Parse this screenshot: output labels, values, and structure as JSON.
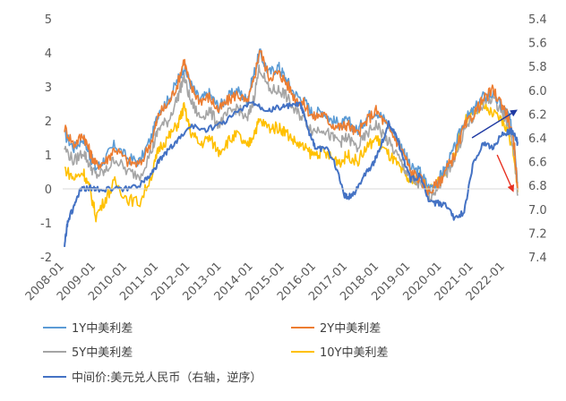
{
  "chart_data": {
    "type": "line",
    "title": "",
    "xlabel": "",
    "ylabel": "",
    "y_left": {
      "lim": [
        -2,
        5
      ],
      "ticks": [
        "-2",
        "-1",
        "0",
        "1",
        "2",
        "3",
        "4",
        "5"
      ]
    },
    "y_right": {
      "lim": [
        7.4,
        5.4
      ],
      "reversed": true,
      "ticks": [
        "5.4",
        "5.6",
        "5.8",
        "6.0",
        "6.2",
        "6.4",
        "6.6",
        "6.8",
        "7.0",
        "7.2",
        "7.4"
      ]
    },
    "x_range": [
      2008.0,
      2022.4
    ],
    "x_ticks": [
      "2008-01",
      "2009-01",
      "2010-01",
      "2011-01",
      "2012-01",
      "2013-01",
      "2014-01",
      "2015-01",
      "2016-01",
      "2017-01",
      "2018-01",
      "2019-01",
      "2020-01",
      "2021-01",
      "2022-01"
    ],
    "grid": false,
    "legend_position": "bottom",
    "series": [
      {
        "name": "1Y中美利差",
        "color": "#5b9bd5",
        "axis": "left",
        "x": [
          2008.0,
          2008.3,
          2008.6,
          2008.8,
          2009.0,
          2009.3,
          2009.6,
          2010.0,
          2010.4,
          2010.8,
          2011.0,
          2011.3,
          2011.6,
          2011.8,
          2012.0,
          2012.3,
          2012.6,
          2012.9,
          2013.2,
          2013.5,
          2013.8,
          2014.0,
          2014.2,
          2014.5,
          2014.8,
          2015.0,
          2015.3,
          2015.6,
          2015.9,
          2016.2,
          2016.5,
          2016.8,
          2017.0,
          2017.3,
          2017.6,
          2017.9,
          2018.2,
          2018.5,
          2018.8,
          2019.0,
          2019.3,
          2019.6,
          2019.9,
          2020.1,
          2020.4,
          2020.7,
          2021.0,
          2021.3,
          2021.6,
          2021.9,
          2022.1,
          2022.3,
          2022.4
        ],
        "y": [
          1.6,
          1.2,
          1.5,
          1.0,
          0.6,
          0.9,
          1.3,
          0.9,
          0.8,
          1.6,
          2.3,
          2.6,
          3.2,
          3.6,
          3.1,
          2.6,
          2.8,
          2.4,
          2.7,
          2.9,
          2.6,
          3.3,
          4.0,
          3.4,
          3.6,
          3.3,
          2.8,
          2.6,
          2.2,
          2.3,
          2.0,
          1.9,
          2.0,
          1.7,
          2.1,
          2.3,
          2.0,
          1.6,
          1.1,
          0.6,
          0.5,
          0.0,
          0.3,
          0.6,
          1.2,
          2.0,
          2.3,
          2.7,
          2.8,
          2.4,
          2.2,
          1.4,
          0.2
        ]
      },
      {
        "name": "2Y中美利差",
        "color": "#ed7d31",
        "axis": "left",
        "x": [
          2008.0,
          2008.3,
          2008.6,
          2008.8,
          2009.0,
          2009.3,
          2009.6,
          2010.0,
          2010.4,
          2010.8,
          2011.0,
          2011.3,
          2011.6,
          2011.8,
          2012.0,
          2012.3,
          2012.6,
          2012.9,
          2013.2,
          2013.5,
          2013.8,
          2014.0,
          2014.2,
          2014.5,
          2014.8,
          2015.0,
          2015.3,
          2015.6,
          2015.9,
          2016.2,
          2016.5,
          2016.8,
          2017.0,
          2017.3,
          2017.6,
          2017.9,
          2018.2,
          2018.5,
          2018.8,
          2019.0,
          2019.3,
          2019.6,
          2019.9,
          2020.1,
          2020.4,
          2020.7,
          2021.0,
          2021.3,
          2021.6,
          2021.9,
          2022.1,
          2022.3,
          2022.4
        ],
        "y": [
          1.8,
          1.3,
          1.6,
          1.1,
          0.7,
          0.8,
          1.2,
          0.8,
          0.7,
          1.5,
          2.2,
          2.5,
          3.1,
          3.8,
          3.0,
          2.6,
          2.7,
          2.3,
          2.6,
          2.8,
          2.5,
          3.1,
          4.1,
          3.3,
          3.4,
          3.2,
          2.7,
          2.5,
          2.1,
          2.2,
          1.9,
          1.8,
          1.9,
          1.6,
          2.0,
          2.3,
          1.9,
          1.5,
          1.0,
          0.5,
          0.3,
          -0.1,
          0.2,
          0.5,
          1.0,
          1.8,
          2.2,
          2.6,
          2.9,
          2.5,
          2.1,
          1.2,
          0.0
        ]
      },
      {
        "name": "5Y中美利差",
        "color": "#a5a5a5",
        "axis": "left",
        "x": [
          2008.0,
          2008.3,
          2008.6,
          2008.8,
          2009.0,
          2009.3,
          2009.6,
          2010.0,
          2010.4,
          2010.8,
          2011.0,
          2011.3,
          2011.6,
          2011.8,
          2012.0,
          2012.3,
          2012.6,
          2012.9,
          2013.2,
          2013.5,
          2013.8,
          2014.0,
          2014.2,
          2014.5,
          2014.8,
          2015.0,
          2015.3,
          2015.6,
          2015.9,
          2016.2,
          2016.5,
          2016.8,
          2017.0,
          2017.3,
          2017.6,
          2017.9,
          2018.2,
          2018.5,
          2018.8,
          2019.0,
          2019.3,
          2019.6,
          2019.9,
          2020.1,
          2020.4,
          2020.7,
          2021.0,
          2021.3,
          2021.6,
          2021.9,
          2022.1,
          2022.3,
          2022.4
        ],
        "y": [
          1.2,
          0.8,
          1.1,
          0.7,
          0.4,
          0.5,
          0.9,
          0.5,
          0.4,
          1.2,
          1.8,
          2.0,
          2.7,
          3.3,
          2.6,
          2.1,
          2.3,
          1.9,
          2.2,
          2.4,
          2.0,
          2.6,
          3.6,
          2.9,
          2.9,
          2.8,
          2.3,
          2.1,
          1.7,
          1.8,
          1.5,
          1.4,
          1.5,
          1.2,
          1.6,
          1.9,
          1.5,
          1.1,
          0.6,
          0.3,
          0.1,
          -0.2,
          0.1,
          0.4,
          0.9,
          1.7,
          2.1,
          2.5,
          2.7,
          2.3,
          1.9,
          1.0,
          -0.2
        ]
      },
      {
        "name": "10Y中美利差",
        "color": "#ffc000",
        "axis": "left",
        "x": [
          2008.0,
          2008.3,
          2008.6,
          2008.8,
          2009.0,
          2009.3,
          2009.6,
          2010.0,
          2010.4,
          2010.8,
          2011.0,
          2011.3,
          2011.6,
          2011.8,
          2012.0,
          2012.3,
          2012.6,
          2012.9,
          2013.2,
          2013.5,
          2013.8,
          2014.0,
          2014.2,
          2014.5,
          2014.8,
          2015.0,
          2015.3,
          2015.6,
          2015.9,
          2016.2,
          2016.5,
          2016.8,
          2017.0,
          2017.3,
          2017.6,
          2017.9,
          2018.2,
          2018.5,
          2018.8,
          2019.0,
          2019.3,
          2019.6,
          2019.9,
          2020.1,
          2020.4,
          2020.7,
          2021.0,
          2021.3,
          2021.6,
          2021.9,
          2022.1,
          2022.3,
          2022.4
        ],
        "y": [
          0.6,
          0.3,
          0.5,
          0.0,
          -0.8,
          -0.3,
          0.2,
          -0.3,
          -0.4,
          0.5,
          1.2,
          1.5,
          1.9,
          2.4,
          1.7,
          1.3,
          1.5,
          1.1,
          1.4,
          1.6,
          1.2,
          1.6,
          2.0,
          1.8,
          1.8,
          1.7,
          1.4,
          1.2,
          1.0,
          1.1,
          0.9,
          0.8,
          1.0,
          0.8,
          1.2,
          1.5,
          1.1,
          0.8,
          0.4,
          0.2,
          0.4,
          0.0,
          0.2,
          0.5,
          1.0,
          2.0,
          2.3,
          2.4,
          2.2,
          2.0,
          1.7,
          0.9,
          -0.1
        ]
      },
      {
        "name": "中间价:美元兑人民币（右轴，逆序）",
        "color": "#4472c4",
        "axis": "right",
        "x": [
          2008.0,
          2008.1,
          2008.3,
          2008.5,
          2008.8,
          2009.0,
          2009.5,
          2010.0,
          2010.5,
          2010.8,
          2011.0,
          2011.3,
          2011.6,
          2012.0,
          2012.5,
          2013.0,
          2013.5,
          2014.0,
          2014.3,
          2014.6,
          2014.9,
          2015.2,
          2015.5,
          2015.6,
          2015.8,
          2016.0,
          2016.3,
          2016.6,
          2016.9,
          2017.0,
          2017.2,
          2017.5,
          2017.8,
          2018.0,
          2018.3,
          2018.5,
          2018.8,
          2019.0,
          2019.3,
          2019.6,
          2019.9,
          2020.1,
          2020.4,
          2020.7,
          2021.0,
          2021.3,
          2021.6,
          2021.9,
          2022.1,
          2022.2,
          2022.35,
          2022.4
        ],
        "y": [
          7.3,
          7.1,
          6.98,
          6.84,
          6.82,
          6.83,
          6.83,
          6.83,
          6.78,
          6.68,
          6.6,
          6.5,
          6.42,
          6.3,
          6.33,
          6.28,
          6.18,
          6.1,
          6.15,
          6.16,
          6.14,
          6.13,
          6.12,
          6.2,
          6.38,
          6.5,
          6.48,
          6.62,
          6.88,
          6.9,
          6.87,
          6.72,
          6.62,
          6.5,
          6.28,
          6.35,
          6.6,
          6.75,
          6.72,
          6.95,
          6.95,
          6.97,
          7.08,
          7.02,
          6.6,
          6.45,
          6.48,
          6.38,
          6.35,
          6.34,
          6.4,
          6.45
        ]
      }
    ],
    "annotations": [
      {
        "type": "arrow",
        "color": "#1f3aa3",
        "direction": "up-right"
      },
      {
        "type": "arrow",
        "color": "#e83020",
        "direction": "down-right"
      }
    ]
  }
}
